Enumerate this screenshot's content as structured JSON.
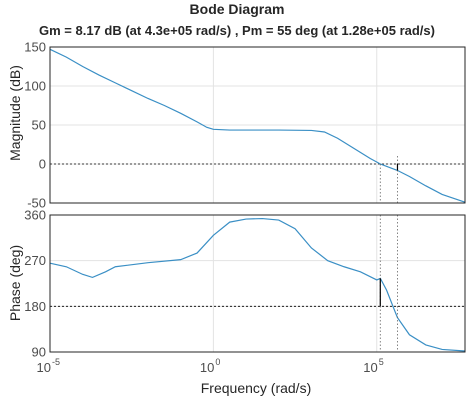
{
  "chart_data": {
    "type": "line",
    "title": "Bode Diagram",
    "subtitle": "Gm = 8.17 dB (at 4.3e+05 rad/s) ,  Pm = 55 deg (at 1.28e+05 rad/s)",
    "xlabel": "Frequency  (rad/s)",
    "xscale": "log",
    "xlim_log10": [
      -5,
      7.7
    ],
    "xticks": [
      {
        "log10": -5,
        "base": "10",
        "exp": "-5"
      },
      {
        "log10": 0,
        "base": "10",
        "exp": "0"
      },
      {
        "log10": 5,
        "base": "10",
        "exp": "5"
      }
    ],
    "grid": true,
    "gain_margin_db": 8.17,
    "gain_crossover_rad_s": 430000,
    "phase_margin_deg": 55,
    "phase_crossover_rad_s": 128000,
    "panels": [
      {
        "name": "magnitude",
        "ylabel": "Magnitude (dB)",
        "ylim": [
          -50,
          150
        ],
        "yticks": [
          "150",
          "100",
          "50",
          "0",
          "-50"
        ],
        "ytick_values": [
          150,
          100,
          50,
          0,
          -50
        ],
        "reference_line": 0,
        "points_log10x": [
          [
            -5,
            147
          ],
          [
            -4.5,
            137
          ],
          [
            -4,
            125
          ],
          [
            -3.5,
            114
          ],
          [
            -3,
            104
          ],
          [
            -2.5,
            94
          ],
          [
            -2,
            84
          ],
          [
            -1.5,
            75
          ],
          [
            -1,
            65
          ],
          [
            -0.5,
            54
          ],
          [
            -0.2,
            47
          ],
          [
            0,
            44.5
          ],
          [
            0.5,
            43.5
          ],
          [
            1,
            43.5
          ],
          [
            2,
            43.5
          ],
          [
            3,
            43
          ],
          [
            3.4,
            41
          ],
          [
            3.8,
            33
          ],
          [
            4.3,
            20
          ],
          [
            4.8,
            7
          ],
          [
            5.11,
            0
          ],
          [
            5.63,
            -8.2
          ],
          [
            6,
            -16
          ],
          [
            6.5,
            -28
          ],
          [
            7,
            -39
          ],
          [
            7.7,
            -49
          ]
        ]
      },
      {
        "name": "phase",
        "ylabel": "Phase (deg)",
        "ylim": [
          90,
          360
        ],
        "yticks": [
          "360",
          "270",
          "180",
          "90"
        ],
        "ytick_values": [
          360,
          270,
          180,
          90
        ],
        "reference_line": 180,
        "points_log10x": [
          [
            -5,
            265
          ],
          [
            -4.5,
            258
          ],
          [
            -4,
            243
          ],
          [
            -3.7,
            237
          ],
          [
            -3.3,
            248
          ],
          [
            -3,
            258
          ],
          [
            -2,
            266
          ],
          [
            -1,
            272
          ],
          [
            -0.5,
            285
          ],
          [
            0,
            320
          ],
          [
            0.5,
            346
          ],
          [
            1,
            352
          ],
          [
            1.5,
            353
          ],
          [
            2,
            350
          ],
          [
            2.5,
            333
          ],
          [
            3,
            295
          ],
          [
            3.5,
            270
          ],
          [
            4,
            258
          ],
          [
            4.5,
            248
          ],
          [
            5,
            232
          ],
          [
            5.11,
            235
          ],
          [
            5.3,
            212
          ],
          [
            5.63,
            158
          ],
          [
            6,
            124
          ],
          [
            6.5,
            104
          ],
          [
            7,
            95
          ],
          [
            7.7,
            92
          ]
        ]
      }
    ]
  }
}
